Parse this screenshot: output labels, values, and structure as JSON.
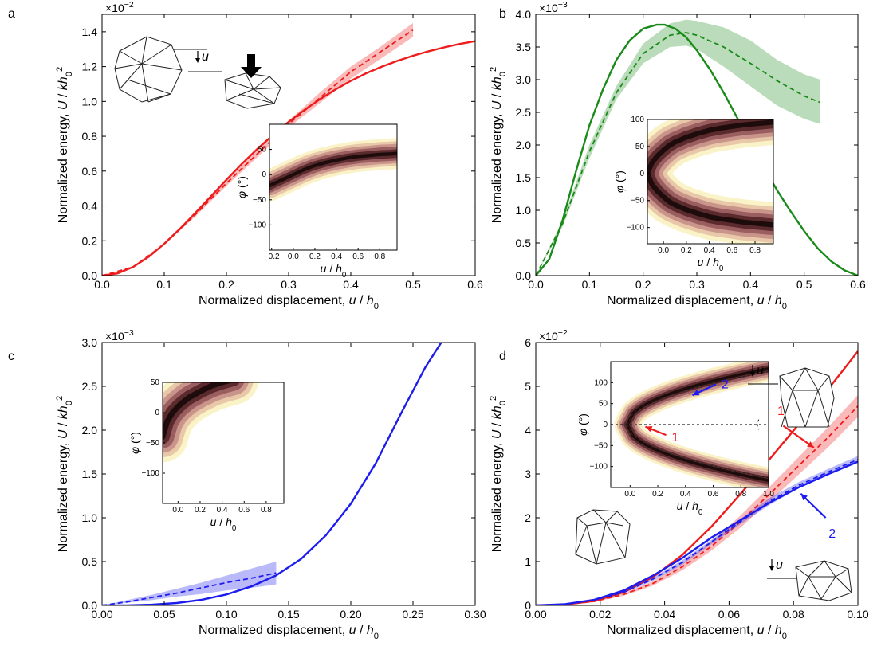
{
  "chart_data": [
    {
      "panel": "a",
      "type": "line",
      "exponent_label": "×10",
      "exponent_power": "−2",
      "xlabel": "Normalized displacement, u / h0",
      "ylabel": "Normalized energy, U / kh0²",
      "xlim": [
        0,
        0.6
      ],
      "ylim": [
        0,
        1.5
      ],
      "xticks": [
        "0.0",
        "0.1",
        "0.2",
        "0.3",
        "0.4",
        "0.5",
        "0.6"
      ],
      "yticks": [
        "0.0",
        "0.2",
        "0.4",
        "0.6",
        "0.8",
        "1.0",
        "1.2",
        "1.4"
      ],
      "series": [
        {
          "style": "solid",
          "color": "#ee1c1c",
          "x": [
            0,
            0.025,
            0.05,
            0.075,
            0.1,
            0.125,
            0.15,
            0.175,
            0.2,
            0.225,
            0.25,
            0.275,
            0.3,
            0.325,
            0.35,
            0.375,
            0.4,
            0.425,
            0.45,
            0.475,
            0.5,
            0.525,
            0.55,
            0.575,
            0.6
          ],
          "y": [
            0,
            0.013,
            0.05,
            0.108,
            0.183,
            0.268,
            0.36,
            0.455,
            0.55,
            0.642,
            0.728,
            0.808,
            0.882,
            0.95,
            1.012,
            1.068,
            1.118,
            1.162,
            1.2,
            1.233,
            1.262,
            1.288,
            1.31,
            1.33,
            1.346
          ]
        },
        {
          "style": "dashed",
          "color": "#ee1c1c",
          "x": [
            0,
            0.05,
            0.1,
            0.15,
            0.2,
            0.25,
            0.3,
            0.35,
            0.4,
            0.45,
            0.5
          ],
          "y": [
            0,
            0.05,
            0.18,
            0.35,
            0.53,
            0.7,
            0.87,
            1.02,
            1.17,
            1.29,
            1.41
          ],
          "band_lower": [
            0,
            0.048,
            0.175,
            0.34,
            0.515,
            0.68,
            0.85,
            0.99,
            1.13,
            1.25,
            1.37
          ],
          "band_upper": [
            0,
            0.052,
            0.185,
            0.36,
            0.545,
            0.72,
            0.89,
            1.05,
            1.2,
            1.32,
            1.45
          ]
        }
      ],
      "inset": {
        "xlim": [
          -0.22,
          0.96
        ],
        "ylim": [
          -150,
          100
        ],
        "xticks": [
          "−0.2",
          "0.0",
          "0.2",
          "0.4",
          "0.6",
          "0.8"
        ],
        "yticks": [
          "50",
          "0",
          "−50",
          "−100"
        ],
        "xlabel": "u / h0",
        "ylabel": "φ (°)",
        "ridge_x": [
          -0.22,
          -0.1,
          0,
          0.1,
          0.2,
          0.3,
          0.4,
          0.5,
          0.6,
          0.7,
          0.8,
          0.9,
          0.96
        ],
        "ridge_y": [
          -22,
          -10,
          0,
          10,
          18,
          24,
          29,
          33,
          36,
          38,
          40,
          41,
          42
        ],
        "half_width": 22,
        "ridge_type": "single"
      }
    },
    {
      "panel": "b",
      "type": "line",
      "exponent_label": "×10",
      "exponent_power": "−3",
      "xlabel": "Normalized displacement, u / h0",
      "ylabel": "Normalized energy, U / kh0²",
      "xlim": [
        0,
        0.6
      ],
      "ylim": [
        0,
        4.0
      ],
      "xticks": [
        "0.0",
        "0.1",
        "0.2",
        "0.3",
        "0.4",
        "0.5",
        "0.6"
      ],
      "yticks": [
        "0.0",
        "0.5",
        "1.0",
        "1.5",
        "2.0",
        "2.5",
        "3.0",
        "3.5",
        "4.0"
      ],
      "series": [
        {
          "style": "solid",
          "color": "#1a8a1a",
          "x": [
            0,
            0.025,
            0.05,
            0.075,
            0.1,
            0.125,
            0.15,
            0.175,
            0.2,
            0.225,
            0.24,
            0.26,
            0.28,
            0.3,
            0.325,
            0.35,
            0.375,
            0.4,
            0.425,
            0.45,
            0.475,
            0.5,
            0.525,
            0.55,
            0.575,
            0.6
          ],
          "y": [
            0,
            0.25,
            0.85,
            1.6,
            2.3,
            2.85,
            3.3,
            3.6,
            3.78,
            3.84,
            3.84,
            3.78,
            3.65,
            3.45,
            3.15,
            2.8,
            2.42,
            2.02,
            1.65,
            1.3,
            0.98,
            0.68,
            0.42,
            0.22,
            0.08,
            0.0
          ]
        },
        {
          "style": "dashed",
          "color": "#1a8a1a",
          "x": [
            0,
            0.05,
            0.1,
            0.15,
            0.2,
            0.25,
            0.28,
            0.3,
            0.35,
            0.4,
            0.45,
            0.5,
            0.53
          ],
          "y": [
            0,
            0.8,
            1.9,
            2.8,
            3.4,
            3.68,
            3.72,
            3.68,
            3.5,
            3.25,
            2.98,
            2.75,
            2.65
          ],
          "band_lower": [
            0,
            0.75,
            1.8,
            2.7,
            3.25,
            3.5,
            3.52,
            3.47,
            3.2,
            2.9,
            2.6,
            2.4,
            2.32
          ],
          "band_upper": [
            0,
            0.85,
            2.0,
            2.9,
            3.55,
            3.86,
            3.92,
            3.9,
            3.8,
            3.6,
            3.3,
            3.08,
            3.0
          ]
        }
      ],
      "inset": {
        "xlim": [
          -0.14,
          0.96
        ],
        "ylim": [
          -130,
          100
        ],
        "xticks": [
          "0.0",
          "0.2",
          "0.4",
          "0.6",
          "0.8"
        ],
        "yticks": [
          "100",
          "50",
          "0",
          "−50",
          "−100"
        ],
        "xlabel": "u / h0",
        "ylabel": "φ (°)",
        "ridge_x": [
          -0.14,
          -0.1,
          -0.05,
          0,
          0.05,
          0.1,
          0.2,
          0.3,
          0.4,
          0.5,
          0.6,
          0.7,
          0.8,
          0.9,
          0.96
        ],
        "ridge_y": [
          0,
          20,
          33,
          43,
          52,
          58,
          67,
          74,
          80,
          84,
          87,
          90,
          92,
          94,
          95
        ],
        "half_width": 30,
        "ridge_type": "parabola_both"
      }
    },
    {
      "panel": "c",
      "type": "line",
      "exponent_label": "×10",
      "exponent_power": "−3",
      "xlabel": "Normalized displacement, u / h0",
      "ylabel": "Normalized energy, U / kh0²",
      "xlim": [
        0,
        0.3
      ],
      "ylim": [
        0,
        3.0
      ],
      "xticks": [
        "0.00",
        "0.05",
        "0.10",
        "0.15",
        "0.20",
        "0.25",
        "0.30"
      ],
      "yticks": [
        "0.0",
        "0.5",
        "1.0",
        "1.5",
        "2.0",
        "2.5",
        "3.0"
      ],
      "series": [
        {
          "style": "solid",
          "color": "#1c1cee",
          "x": [
            0,
            0.02,
            0.04,
            0.06,
            0.08,
            0.1,
            0.12,
            0.14,
            0.16,
            0.18,
            0.2,
            0.22,
            0.24,
            0.26,
            0.275
          ],
          "y": [
            0,
            0.001,
            0.008,
            0.027,
            0.064,
            0.125,
            0.216,
            0.343,
            0.53,
            0.8,
            1.16,
            1.62,
            2.18,
            2.72,
            3.05
          ]
        },
        {
          "style": "dashed",
          "color": "#1c1cee",
          "x": [
            0,
            0.02,
            0.04,
            0.06,
            0.08,
            0.1,
            0.12,
            0.14
          ],
          "y": [
            0,
            0.04,
            0.09,
            0.14,
            0.2,
            0.26,
            0.31,
            0.37
          ],
          "band_lower": [
            0,
            0.03,
            0.06,
            0.1,
            0.13,
            0.17,
            0.2,
            0.24
          ],
          "band_upper": [
            0,
            0.06,
            0.12,
            0.19,
            0.26,
            0.34,
            0.42,
            0.5
          ]
        }
      ],
      "inset": {
        "xlim": [
          -0.14,
          0.96
        ],
        "ylim": [
          -150,
          50
        ],
        "xticks": [
          "0.0",
          "0.2",
          "0.4",
          "0.6",
          "0.8"
        ],
        "yticks": [
          "50",
          "0",
          "−50",
          "−100"
        ],
        "xlabel": "u / h0",
        "ylabel": "φ (°)",
        "ridge_x": [
          -0.14,
          -0.1,
          -0.05,
          0,
          0.05,
          0.1,
          0.2,
          0.3,
          0.4,
          0.5
        ],
        "ridge_y": [
          -40,
          -15,
          0,
          10,
          18,
          25,
          35,
          44,
          50,
          55
        ],
        "half_width": 30,
        "ridge_type": "single"
      }
    },
    {
      "panel": "d",
      "type": "line",
      "exponent_label": "×10",
      "exponent_power": "−2",
      "xlabel": "Normalized displacement, u / h0",
      "ylabel": "Normalized energy, U / kh0²",
      "xlim": [
        0,
        0.11
      ],
      "ylim": [
        0,
        6
      ],
      "xticks": [
        "0.00",
        "0.02",
        "0.04",
        "0.06",
        "0.08",
        "0.10"
      ],
      "yticks": [
        "0",
        "1",
        "2",
        "3",
        "4",
        "5",
        "6"
      ],
      "series": [
        {
          "style": "solid",
          "color": "#ee1c1c",
          "x": [
            0,
            0.01,
            0.02,
            0.03,
            0.04,
            0.05,
            0.06,
            0.07,
            0.08,
            0.09,
            0.1,
            0.11
          ],
          "y": [
            0,
            0.02,
            0.1,
            0.3,
            0.65,
            1.15,
            1.8,
            2.55,
            3.35,
            4.15,
            4.95,
            5.8
          ]
        },
        {
          "style": "dashed",
          "color": "#ee1c1c",
          "x": [
            0,
            0.01,
            0.02,
            0.03,
            0.04,
            0.05,
            0.06,
            0.07,
            0.08,
            0.09,
            0.1,
            0.11
          ],
          "y": [
            0,
            0.02,
            0.09,
            0.25,
            0.5,
            0.88,
            1.35,
            1.92,
            2.55,
            3.2,
            3.85,
            4.55
          ],
          "band_lower": [
            0,
            0.018,
            0.08,
            0.22,
            0.45,
            0.8,
            1.25,
            1.78,
            2.38,
            3.0,
            3.62,
            4.3
          ],
          "band_upper": [
            0,
            0.022,
            0.1,
            0.28,
            0.55,
            0.96,
            1.45,
            2.06,
            2.72,
            3.4,
            4.08,
            4.8
          ]
        },
        {
          "style": "solid",
          "color": "#1c1cee",
          "x": [
            0,
            0.01,
            0.02,
            0.03,
            0.04,
            0.05,
            0.06,
            0.07,
            0.08,
            0.09,
            0.1,
            0.11
          ],
          "y": [
            0,
            0.03,
            0.13,
            0.34,
            0.68,
            1.08,
            1.55,
            1.95,
            2.35,
            2.7,
            3.0,
            3.28
          ]
        },
        {
          "style": "dashed",
          "color": "#1c1cee",
          "x": [
            0,
            0.01,
            0.02,
            0.03,
            0.04,
            0.05,
            0.06,
            0.07,
            0.08,
            0.09,
            0.1,
            0.11
          ],
          "y": [
            0,
            0.03,
            0.12,
            0.3,
            0.6,
            0.98,
            1.45,
            1.92,
            2.38,
            2.75,
            3.05,
            3.33
          ],
          "band_lower": [
            0,
            0.028,
            0.11,
            0.28,
            0.56,
            0.93,
            1.4,
            1.86,
            2.3,
            2.68,
            2.98,
            3.25
          ],
          "band_upper": [
            0,
            0.032,
            0.13,
            0.32,
            0.64,
            1.03,
            1.5,
            1.98,
            2.46,
            2.82,
            3.12,
            3.41
          ]
        }
      ],
      "annotations": [
        {
          "text": "1",
          "color": "#ee1c1c"
        },
        {
          "text": "2",
          "color": "#1c1cee"
        }
      ],
      "inset": {
        "xlim": [
          -0.14,
          1.0
        ],
        "ylim": [
          -150,
          150
        ],
        "xticks": [
          "0.0",
          "0.2",
          "0.4",
          "0.6",
          "0.8",
          "1.0"
        ],
        "yticks": [
          "100",
          "50",
          "0",
          "−50",
          "−100"
        ],
        "xlabel": "u / h0",
        "ylabel": "φ (°)",
        "ridge_type": "parabola_both",
        "half_width": 22,
        "annotations": [
          {
            "text": "2",
            "color": "#1c1cee"
          },
          {
            "text": "1",
            "color": "#ee1c1c"
          }
        ]
      }
    }
  ],
  "panel_labels": [
    "a",
    "b",
    "c",
    "d"
  ],
  "inset_unit_symbol": "u",
  "displacement_symbol": "u"
}
